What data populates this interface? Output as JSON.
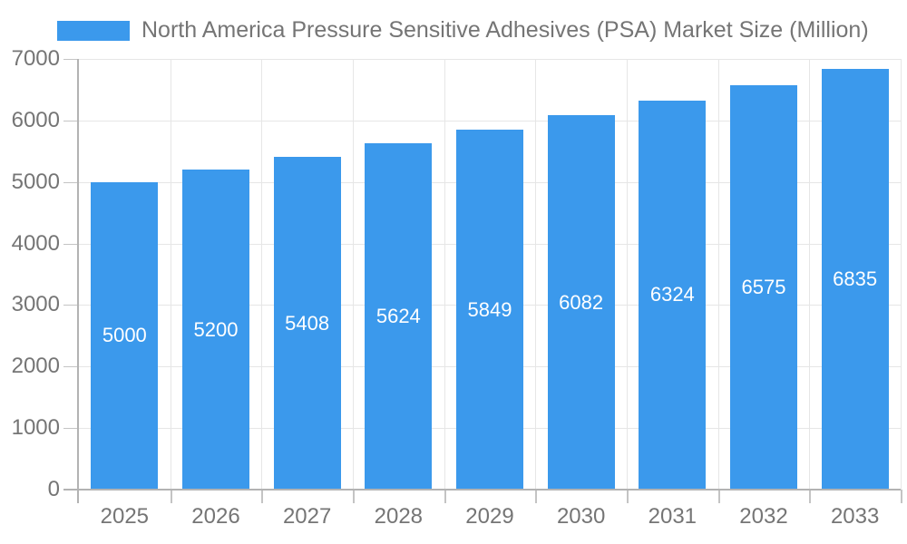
{
  "chart_data": {
    "type": "bar",
    "title": "North America Pressure Sensitive Adhesives (PSA) Market Size (Million)",
    "categories": [
      "2025",
      "2026",
      "2027",
      "2028",
      "2029",
      "2030",
      "2031",
      "2032",
      "2033"
    ],
    "values": [
      5000,
      5200,
      5408,
      5624,
      5849,
      6082,
      6324,
      6575,
      6835
    ],
    "bar_labels": [
      "5000",
      "5200",
      "5408",
      "5624",
      "5849",
      "6082",
      "6324",
      "6575",
      "6835"
    ],
    "xlabel": "",
    "ylabel": "",
    "ylim": [
      0,
      7000
    ],
    "y_ticks": [
      0,
      1000,
      2000,
      3000,
      4000,
      5000,
      6000,
      7000
    ],
    "y_tick_labels": [
      "0",
      "1000",
      "2000",
      "3000",
      "4000",
      "5000",
      "6000",
      "7000"
    ],
    "grid": true,
    "legend_position": "top-left",
    "colors": {
      "bar": "#3b99ec",
      "bar_label_text": "#ffffff",
      "axis_text": "#757575",
      "axis_line": "#b3b3b3",
      "gridline": "#e6e6e6",
      "tick": "#c4c4c4",
      "background": "#ffffff"
    }
  }
}
